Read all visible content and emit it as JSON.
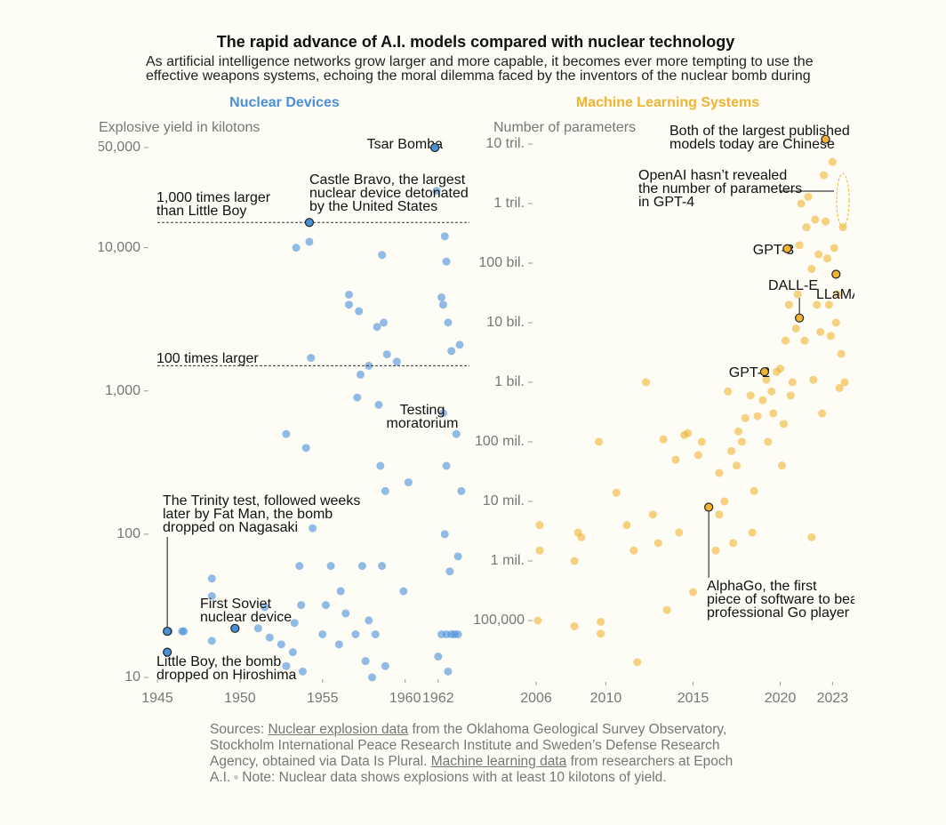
{
  "header": {
    "title": "The rapid advance of A.I. models compared with nuclear technology",
    "subtitle": [
      "As artificial intelligence networks grow larger and more capable, it becomes ever more tempting to use the",
      "effective weapons systems, echoing the moral dilemma faced by the inventors of the nuclear bomb during"
    ]
  },
  "chart_data": [
    {
      "type": "scatter",
      "title": "Nuclear Devices",
      "ylabel": "Explosive yield in kilotons",
      "color": "#4a90d9",
      "log_y": true,
      "xlim": [
        1945,
        1964
      ],
      "ylim": [
        10,
        50000
      ],
      "xticks": [
        1945,
        1950,
        1955,
        1960,
        1962
      ],
      "yticks": [
        10,
        100,
        {
          "value": 1000,
          "label": "1,000"
        },
        {
          "value": 10000,
          "label": "10,000"
        },
        {
          "value": 50000,
          "label": "50,000"
        }
      ],
      "x": [
        1945.7,
        1946.5,
        1946.6,
        1948.3,
        1948.3,
        1948.3,
        1951.1,
        1951.5,
        1951.8,
        1952.5,
        1952.8,
        1952.8,
        1953.2,
        1953.3,
        1953.6,
        1953.7,
        1953.8,
        1954.2,
        1953.4,
        1954.3,
        1954.0,
        1954.4,
        1955.0,
        1955.2,
        1955.5,
        1956.0,
        1956.1,
        1956.4,
        1956.6,
        1956.6,
        1957.0,
        1957.2,
        1957.3,
        1957.1,
        1957.6,
        1957.8,
        1957.4,
        1957.8,
        1958.0,
        1958.2,
        1958.3,
        1958.4,
        1958.6,
        1958.7,
        1958.9,
        1958.6,
        1958.8,
        1958.5,
        1958.8,
        1959.5,
        1959.9,
        1960.2,
        1961.9,
        1962.2,
        1962.4,
        1962.5,
        1962.6,
        1962.8,
        1962.3,
        1962.5,
        1962.4,
        1962.7,
        1962.2,
        1962.5,
        1962.8,
        1963.0,
        1963.2,
        1962.0,
        1962.6,
        1963.3,
        1963.1,
        1963.4,
        1963.2,
        1962.3
      ],
      "values": [
        21,
        21,
        21,
        37,
        49,
        18,
        22,
        31,
        19,
        17,
        12,
        500,
        15,
        24,
        60,
        32,
        11,
        11000,
        10000,
        1700,
        400,
        110,
        20,
        32,
        60,
        17,
        40,
        28,
        4700,
        4000,
        20,
        3600,
        1300,
        900,
        13,
        1500,
        60,
        25,
        10,
        20,
        2800,
        800,
        8900,
        3000,
        1800,
        60,
        12,
        300,
        200,
        1600,
        40,
        230,
        25000,
        4500,
        12000,
        8000,
        3000,
        1900,
        700,
        300,
        100,
        55,
        20,
        20,
        20,
        20,
        20,
        14,
        11,
        2100,
        500,
        200,
        70,
        4000
      ],
      "reference_lines": [
        {
          "value": 15000,
          "label": [
            "1,000 times larger",
            "than Little Boy"
          ]
        },
        {
          "value": 1500,
          "label": [
            "100 times larger"
          ]
        }
      ],
      "annotations": [
        {
          "text": [
            "Tsar Bomba"
          ],
          "x": 1961.8,
          "y": 50000
        },
        {
          "text": [
            "Castle Bravo, the largest",
            "nuclear device detonated",
            "by the United States"
          ],
          "x": 1954.2,
          "y": 15000
        },
        {
          "text": [
            "The Trinity test, followed weeks",
            "later by Fat Man, the bomb",
            "dropped on Nagasaki"
          ],
          "x": 1945.6,
          "y": 21
        },
        {
          "text": [
            "First Soviet",
            "nuclear device"
          ],
          "x": 1949.7,
          "y": 22
        },
        {
          "text": [
            "Little Boy, the bomb",
            "dropped on Hiroshima"
          ],
          "x": 1945.6,
          "y": 15
        },
        {
          "text": [
            "Testing",
            "moratorium"
          ]
        }
      ]
    },
    {
      "type": "scatter",
      "title": "Machine Learning Systems",
      "ylabel": "Number of parameters",
      "color": "#f0b432",
      "log_y": true,
      "xlim": [
        2006,
        2024
      ],
      "ylim": [
        10000,
        10000000000000
      ],
      "xticks": [
        2006,
        2010,
        2015,
        2020,
        2023
      ],
      "yticks": [
        {
          "value": 100000,
          "label": "100,000"
        },
        {
          "value": 1000000,
          "label": "1 mil."
        },
        {
          "value": 10000000,
          "label": "10 mil."
        },
        {
          "value": 100000000,
          "label": "100 mil."
        },
        {
          "value": 1000000000,
          "label": "1 bil."
        },
        {
          "value": 10000000000,
          "label": "10 bil."
        },
        {
          "value": 100000000000,
          "label": "100 bil."
        },
        {
          "value": 1000000000000,
          "label": "1 tril."
        },
        {
          "value": 10000000000000,
          "label": "10 tril."
        }
      ],
      "x": [
        2006.2,
        2006.2,
        2006.1,
        2008.2,
        2008.4,
        2008.6,
        2008.2,
        2009.7,
        2009.7,
        2009.6,
        2010.6,
        2011.2,
        2011.6,
        2011.8,
        2012.3,
        2012.7,
        2013.0,
        2013.5,
        2013.3,
        2014.0,
        2014.5,
        2014.7,
        2014.2,
        2015.0,
        2015.3,
        2015.5,
        2016.3,
        2016.5,
        2016.5,
        2016.8,
        2017.0,
        2017.2,
        2017.3,
        2017.5,
        2017.6,
        2017.8,
        2018.0,
        2018.3,
        2018.4,
        2018.5,
        2018.7,
        2019.0,
        2019.2,
        2019.3,
        2019.5,
        2019.6,
        2019.8,
        2020.0,
        2020.1,
        2020.2,
        2020.3,
        2020.5,
        2020.6,
        2020.7,
        2020.9,
        2021.0,
        2021.1,
        2021.2,
        2021.4,
        2021.5,
        2021.6,
        2021.8,
        2021.9,
        2022.0,
        2022.1,
        2022.2,
        2022.3,
        2022.4,
        2022.5,
        2022.6,
        2022.7,
        2022.8,
        2022.9,
        2023.0,
        2023.1,
        2023.2,
        2023.3,
        2023.4,
        2023.5,
        2023.6,
        2023.7,
        2021.8
      ],
      "values": [
        4000000,
        1500000,
        100000,
        1000000,
        3000000,
        2500000,
        80000,
        95000,
        60000,
        100000000,
        14000000,
        4000000,
        1500000,
        20000,
        1000000000,
        6000000,
        2000000,
        150000,
        110000000,
        50000000,
        130000000,
        140000000,
        3000000,
        300000,
        60000000,
        100000000,
        1500000,
        6000000,
        30000000,
        10000000,
        700000000,
        70000000,
        2000000,
        40000000,
        150000000,
        100000000,
        250000000,
        600000000,
        3000000,
        15000000,
        270000000,
        500000000,
        1100000000,
        100000000,
        700000000,
        300000000,
        1500000000,
        1700000000,
        40000000,
        200000000,
        5000000000,
        20000000000,
        600000000,
        1000000000,
        8000000000,
        30000000000,
        200000000000,
        1000000000000,
        5000000000,
        400000000000,
        1300000000000,
        80000000000,
        1100000000,
        540000000000,
        20000000000,
        140000000000,
        7000000000,
        300000000,
        3000000000000,
        500000000000,
        120000000000,
        20000000000,
        6000000000,
        5000000000000,
        180000000000,
        10000000000,
        30000000000,
        800000000,
        3000000000,
        400000000000,
        1000000000,
        2500000
      ],
      "annotations": [
        {
          "text": [
            "Both of the largest published",
            "models today are Chinese"
          ],
          "x": 2022.6,
          "y": 12000000000000
        },
        {
          "text": [
            "OpenAI hasn’t revealed",
            "the number of parameters",
            "in GPT-4"
          ]
        },
        {
          "text": [
            "GPT-3"
          ],
          "x": 2020.4,
          "y": 175000000000
        },
        {
          "text": [
            "DALL-E"
          ],
          "x": 2021.1,
          "y": 12000000000
        },
        {
          "text": [
            "LLaMA"
          ],
          "x": 2023.2,
          "y": 65000000000
        },
        {
          "text": [
            "GPT-2"
          ],
          "x": 2019.1,
          "y": 1500000000
        },
        {
          "text": [
            "AlphaGo, the first",
            "piece of software to beat a",
            "professional Go player"
          ],
          "x": 2015.9,
          "y": 8000000
        }
      ]
    }
  ],
  "footer": {
    "sources_label": "Sources:",
    "link1": "Nuclear explosion data",
    "text1": "from the Oklahoma Geological Survey Observatory, Stockholm International Peace Research Institute and Sweden’s Defense Research Agency, obtained via Data Is Plural.",
    "link2": "Machine learning data",
    "text2": "from researchers at Epoch A.I.",
    "note": "Note: Nuclear data shows explosions with at least 10 kilotons of yield."
  }
}
